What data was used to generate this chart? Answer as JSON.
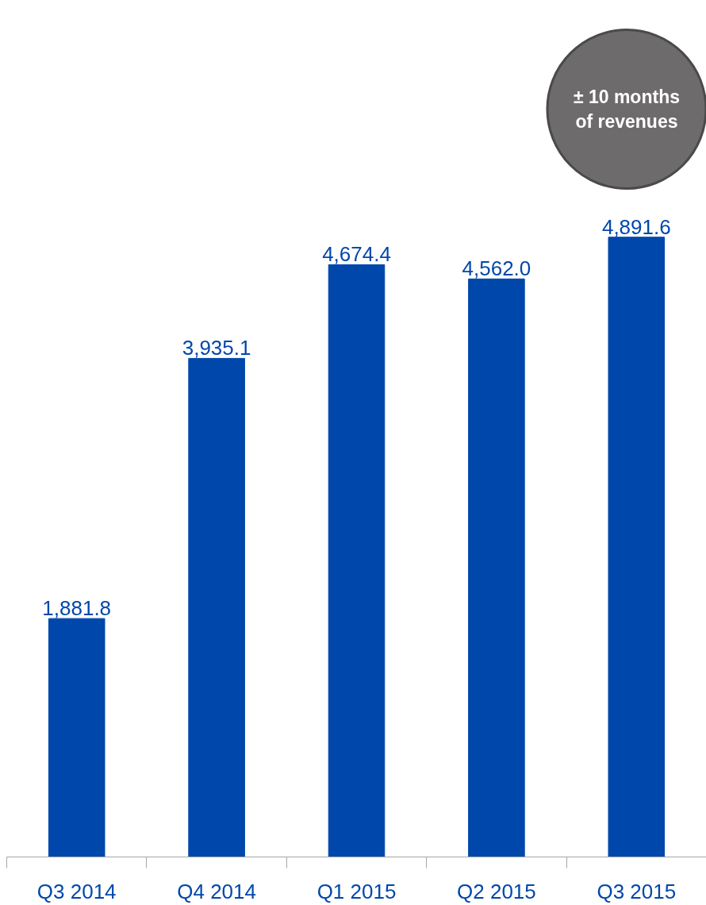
{
  "chart_data": {
    "type": "bar",
    "categories": [
      "Q3 2014",
      "Q4 2014",
      "Q1 2015",
      "Q2 2015",
      "Q3 2015"
    ],
    "values": [
      1881.8,
      3935.1,
      4674.4,
      4562.0,
      4891.6
    ],
    "value_labels": [
      "1,881.8",
      "3,935.1",
      "4,674.4",
      "4,562.0",
      "4,891.6"
    ],
    "color": "#0047ab",
    "grid": false,
    "annotations": [
      "± 10 months\nof revenues"
    ]
  }
}
